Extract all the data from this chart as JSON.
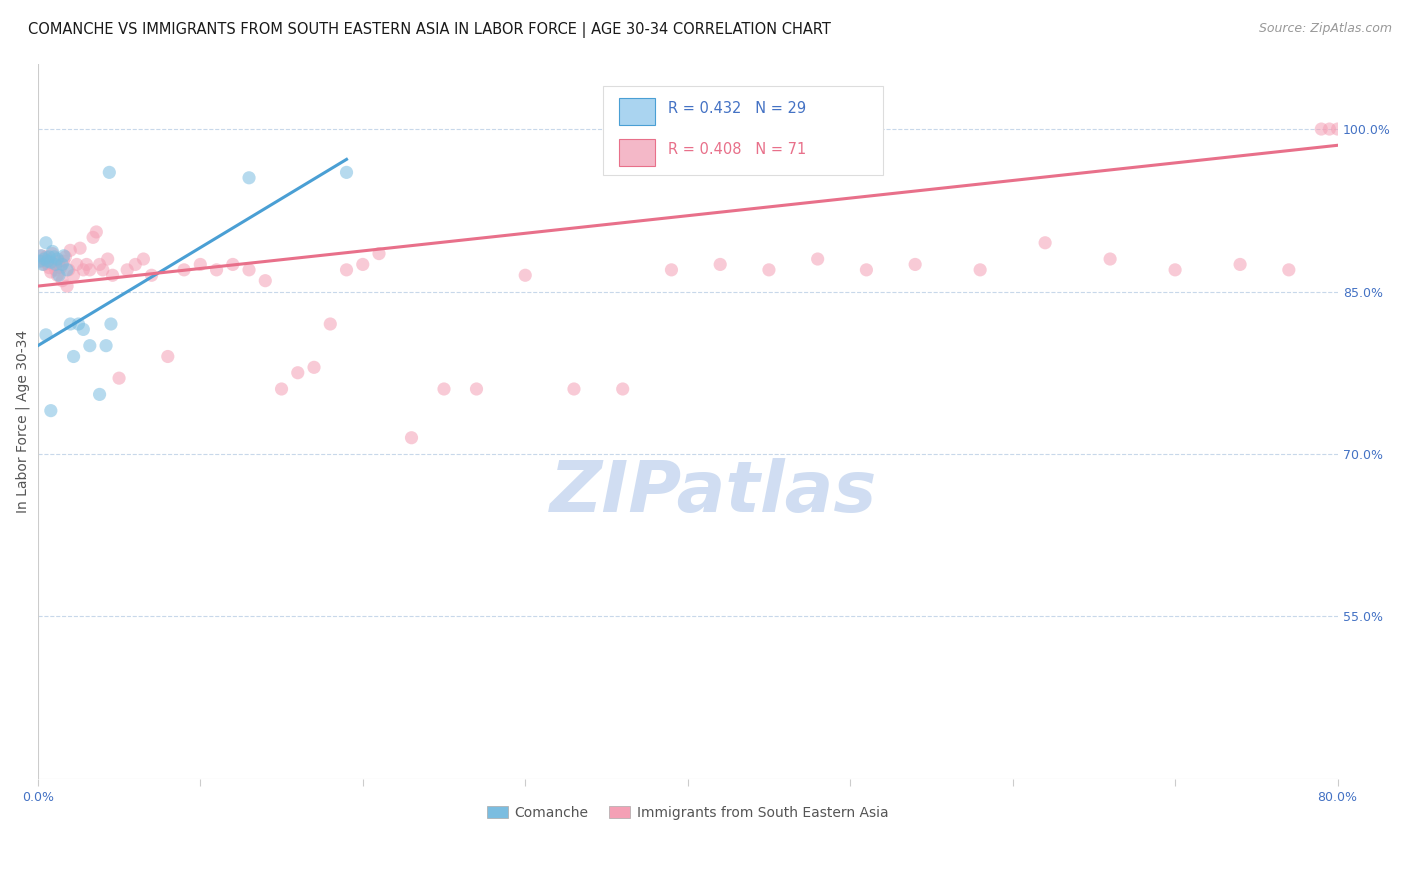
{
  "title": "COMANCHE VS IMMIGRANTS FROM SOUTH EASTERN ASIA IN LABOR FORCE | AGE 30-34 CORRELATION CHART",
  "source": "Source: ZipAtlas.com",
  "ylabel": "In Labor Force | Age 30-34",
  "x_min": 0.0,
  "x_max": 0.8,
  "y_min": 0.4,
  "y_max": 1.06,
  "y_ticks": [
    0.55,
    0.7,
    0.85,
    1.0
  ],
  "y_tick_labels": [
    "55.0%",
    "70.0%",
    "85.0%",
    "100.0%"
  ],
  "comanche_R": 0.432,
  "comanche_N": 29,
  "immigrants_R": 0.408,
  "immigrants_N": 71,
  "comanche_color": "#7bbde0",
  "immigrants_color": "#f4a0b5",
  "comanche_line_color": "#4a9fd4",
  "immigrants_line_color": "#e8708a",
  "background_color": "#ffffff",
  "grid_color": "#c8d8ea",
  "axis_color": "#cccccc",
  "tick_label_color": "#4472c4",
  "title_fontsize": 10.5,
  "source_fontsize": 9,
  "axis_label_fontsize": 10,
  "tick_fontsize": 9,
  "scatter_size": 90,
  "scatter_alpha": 0.55,
  "line_width": 2.2,
  "comanche_x": [
    0.001,
    0.002,
    0.003,
    0.004,
    0.005,
    0.006,
    0.007,
    0.008,
    0.009,
    0.01,
    0.011,
    0.012,
    0.013,
    0.015,
    0.016,
    0.018,
    0.02,
    0.022,
    0.025,
    0.028,
    0.032,
    0.038,
    0.042,
    0.044,
    0.045,
    0.005,
    0.008,
    0.13,
    0.19
  ],
  "comanche_y": [
    0.878,
    0.883,
    0.875,
    0.88,
    0.895,
    0.878,
    0.882,
    0.877,
    0.887,
    0.882,
    0.875,
    0.88,
    0.865,
    0.875,
    0.883,
    0.87,
    0.82,
    0.79,
    0.82,
    0.815,
    0.8,
    0.755,
    0.8,
    0.96,
    0.82,
    0.81,
    0.74,
    0.955,
    0.96
  ],
  "immigrants_x": [
    0.002,
    0.003,
    0.004,
    0.005,
    0.006,
    0.007,
    0.008,
    0.009,
    0.01,
    0.011,
    0.012,
    0.013,
    0.014,
    0.015,
    0.016,
    0.017,
    0.018,
    0.019,
    0.02,
    0.022,
    0.024,
    0.026,
    0.028,
    0.03,
    0.032,
    0.034,
    0.036,
    0.038,
    0.04,
    0.043,
    0.046,
    0.05,
    0.055,
    0.06,
    0.065,
    0.07,
    0.08,
    0.09,
    0.1,
    0.11,
    0.12,
    0.13,
    0.14,
    0.15,
    0.16,
    0.17,
    0.18,
    0.19,
    0.2,
    0.21,
    0.23,
    0.25,
    0.27,
    0.3,
    0.33,
    0.36,
    0.39,
    0.42,
    0.45,
    0.48,
    0.51,
    0.54,
    0.58,
    0.62,
    0.66,
    0.7,
    0.74,
    0.77,
    0.79,
    0.795,
    0.8
  ],
  "immigrants_y": [
    0.883,
    0.878,
    0.875,
    0.882,
    0.876,
    0.872,
    0.868,
    0.885,
    0.875,
    0.87,
    0.865,
    0.878,
    0.872,
    0.86,
    0.878,
    0.882,
    0.855,
    0.87,
    0.888,
    0.865,
    0.875,
    0.89,
    0.87,
    0.875,
    0.87,
    0.9,
    0.905,
    0.875,
    0.87,
    0.88,
    0.865,
    0.77,
    0.87,
    0.875,
    0.88,
    0.865,
    0.79,
    0.87,
    0.875,
    0.87,
    0.875,
    0.87,
    0.86,
    0.76,
    0.775,
    0.78,
    0.82,
    0.87,
    0.875,
    0.885,
    0.715,
    0.76,
    0.76,
    0.865,
    0.76,
    0.76,
    0.87,
    0.875,
    0.87,
    0.88,
    0.87,
    0.875,
    0.87,
    0.895,
    0.88,
    0.87,
    0.875,
    0.87,
    1.0,
    1.0,
    1.0
  ],
  "comanche_line_x": [
    0.0,
    0.19
  ],
  "immigrants_line_x": [
    0.0,
    0.8
  ],
  "watermark_text": "ZIPatlas",
  "watermark_color": "#c8d8f0",
  "watermark_fontsize": 52,
  "legend_text_color_blue": "#4472c4",
  "legend_text_color_pink": "#e8708a"
}
